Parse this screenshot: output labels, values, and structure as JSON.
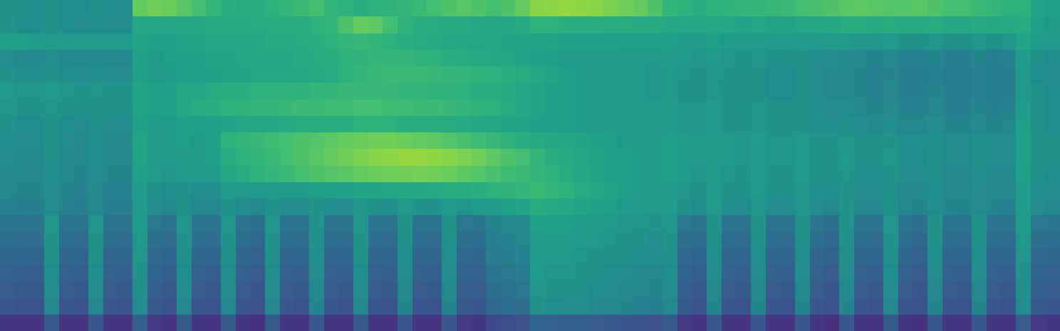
{
  "chart_data": {
    "type": "heatmap",
    "tick_labels": false,
    "grid": false,
    "zlim": [
      0,
      100
    ],
    "z": [
      [
        50,
        50,
        49,
        50,
        49,
        49,
        50,
        49,
        48,
        76,
        78,
        77,
        74,
        70,
        66,
        63,
        62,
        62,
        64,
        66,
        68,
        70,
        66,
        64,
        63,
        64,
        65,
        66,
        68,
        70,
        72,
        74,
        72,
        70,
        72,
        76,
        82,
        83,
        84,
        83,
        82,
        80,
        78,
        76,
        72,
        66,
        64,
        63,
        64,
        65,
        66,
        66,
        67,
        68,
        70,
        71,
        72,
        74,
        75,
        74,
        73,
        73,
        74,
        72,
        70,
        70,
        68,
        66,
        64,
        64,
        58,
        56
      ],
      [
        50,
        49,
        49,
        50,
        49,
        48,
        49,
        48,
        48,
        60,
        59,
        59,
        60,
        60,
        61,
        61,
        61,
        62,
        62,
        63,
        63,
        64,
        66,
        72,
        76,
        75,
        70,
        65,
        63,
        62,
        61,
        61,
        60,
        60,
        60,
        61,
        64,
        64,
        63,
        63,
        63,
        62,
        62,
        61,
        61,
        60,
        59,
        59,
        60,
        59,
        58,
        59,
        58,
        58,
        59,
        59,
        60,
        62,
        62,
        61,
        62,
        61,
        61,
        62,
        60,
        60,
        61,
        60,
        61,
        62,
        56,
        55
      ],
      [
        56,
        56,
        55,
        55,
        55,
        54,
        54,
        55,
        54,
        58,
        57,
        57,
        58,
        58,
        59,
        59,
        60,
        60,
        61,
        61,
        62,
        63,
        64,
        66,
        67,
        66,
        64,
        63,
        62,
        61,
        60,
        60,
        59,
        59,
        58,
        58,
        58,
        58,
        57,
        57,
        57,
        57,
        56,
        56,
        56,
        56,
        55,
        55,
        56,
        55,
        54,
        55,
        54,
        54,
        55,
        54,
        53,
        53,
        52,
        52,
        53,
        51,
        51,
        52,
        50,
        50,
        52,
        51,
        52,
        58,
        54,
        53
      ],
      [
        48,
        47,
        47,
        48,
        47,
        46,
        47,
        46,
        46,
        57,
        55,
        56,
        57,
        57,
        58,
        58,
        59,
        59,
        60,
        60,
        61,
        62,
        63,
        64,
        65,
        66,
        66,
        66,
        65,
        64,
        63,
        62,
        61,
        60,
        59,
        58,
        57,
        56,
        55,
        55,
        54,
        54,
        53,
        53,
        53,
        54,
        53,
        52,
        53,
        52,
        51,
        52,
        50,
        50,
        51,
        49,
        48,
        47,
        46,
        45,
        46,
        44,
        44,
        45,
        43,
        43,
        45,
        43,
        44,
        54,
        50,
        49
      ],
      [
        50,
        49,
        49,
        50,
        49,
        48,
        49,
        48,
        48,
        57,
        55,
        55,
        56,
        57,
        57,
        58,
        58,
        59,
        59,
        60,
        60,
        61,
        62,
        64,
        66,
        67,
        68,
        68,
        68,
        67,
        66,
        66,
        65,
        64,
        63,
        62,
        60,
        58,
        56,
        55,
        54,
        54,
        53,
        53,
        52,
        53,
        52,
        51,
        52,
        51,
        50,
        51,
        49,
        49,
        50,
        48,
        47,
        46,
        45,
        44,
        45,
        43,
        42,
        44,
        42,
        42,
        44,
        42,
        43,
        53,
        49,
        48
      ],
      [
        53,
        52,
        52,
        53,
        52,
        51,
        52,
        51,
        51,
        58,
        56,
        57,
        59,
        60,
        62,
        63,
        63,
        64,
        64,
        65,
        65,
        66,
        66,
        67,
        67,
        67,
        67,
        66,
        66,
        65,
        65,
        64,
        63,
        62,
        61,
        60,
        58,
        57,
        56,
        55,
        54,
        54,
        53,
        53,
        52,
        53,
        51,
        51,
        52,
        50,
        50,
        51,
        49,
        49,
        50,
        48,
        47,
        47,
        45,
        44,
        46,
        43,
        43,
        45,
        42,
        42,
        44,
        42,
        43,
        53,
        50,
        49
      ],
      [
        52,
        51,
        51,
        52,
        51,
        50,
        51,
        50,
        50,
        58,
        56,
        57,
        60,
        62,
        63,
        64,
        65,
        66,
        66,
        67,
        68,
        68,
        69,
        69,
        70,
        70,
        69,
        69,
        68,
        68,
        67,
        66,
        65,
        64,
        62,
        60,
        58,
        57,
        56,
        55,
        55,
        54,
        54,
        53,
        53,
        54,
        52,
        52,
        53,
        51,
        51,
        52,
        50,
        50,
        51,
        49,
        48,
        48,
        46,
        45,
        47,
        44,
        44,
        46,
        43,
        43,
        45,
        43,
        44,
        54,
        50,
        49
      ],
      [
        50,
        49,
        49,
        51,
        49,
        48,
        50,
        48,
        48,
        57,
        55,
        55,
        56,
        56,
        57,
        58,
        59,
        60,
        60,
        61,
        62,
        62,
        63,
        63,
        64,
        64,
        64,
        63,
        63,
        62,
        62,
        61,
        60,
        59,
        58,
        58,
        57,
        56,
        56,
        55,
        55,
        54,
        54,
        53,
        53,
        54,
        52,
        52,
        53,
        51,
        51,
        52,
        50,
        50,
        51,
        49,
        49,
        50,
        48,
        47,
        49,
        46,
        46,
        48,
        45,
        45,
        47,
        45,
        46,
        56,
        50,
        49
      ],
      [
        49,
        48,
        48,
        51,
        48,
        47,
        49,
        47,
        47,
        58,
        55,
        54,
        56,
        55,
        57,
        64,
        66,
        67,
        69,
        70,
        72,
        73,
        75,
        76,
        77,
        78,
        78,
        77,
        76,
        75,
        73,
        71,
        69,
        67,
        65,
        63,
        61,
        60,
        59,
        58,
        57,
        56,
        55,
        55,
        54,
        56,
        54,
        53,
        55,
        53,
        52,
        54,
        52,
        52,
        53,
        51,
        51,
        52,
        50,
        50,
        51,
        49,
        49,
        50,
        48,
        48,
        50,
        48,
        48,
        57,
        51,
        50
      ],
      [
        48,
        47,
        47,
        50,
        47,
        46,
        49,
        46,
        46,
        58,
        54,
        53,
        55,
        54,
        56,
        62,
        64,
        66,
        68,
        70,
        72,
        74,
        76,
        78,
        80,
        82,
        83,
        84,
        84,
        83,
        82,
        80,
        78,
        75,
        72,
        70,
        66,
        63,
        61,
        59,
        58,
        57,
        56,
        55,
        55,
        56,
        54,
        53,
        55,
        53,
        52,
        54,
        52,
        52,
        54,
        51,
        51,
        53,
        50,
        50,
        52,
        49,
        49,
        51,
        48,
        48,
        50,
        48,
        48,
        57,
        51,
        50
      ],
      [
        47,
        46,
        46,
        49,
        46,
        45,
        48,
        45,
        45,
        57,
        53,
        52,
        54,
        53,
        54,
        60,
        62,
        64,
        66,
        68,
        70,
        72,
        73,
        74,
        76,
        77,
        78,
        78,
        79,
        78,
        77,
        75,
        73,
        71,
        69,
        68,
        66,
        64,
        62,
        60,
        58,
        57,
        56,
        55,
        54,
        56,
        53,
        52,
        55,
        52,
        51,
        54,
        51,
        51,
        53,
        50,
        50,
        52,
        49,
        49,
        51,
        48,
        48,
        50,
        47,
        47,
        49,
        47,
        47,
        56,
        50,
        49
      ],
      [
        46,
        45,
        45,
        48,
        45,
        44,
        47,
        44,
        44,
        55,
        50,
        49,
        50,
        49,
        49,
        54,
        53,
        54,
        55,
        54,
        55,
        56,
        56,
        57,
        58,
        58,
        59,
        60,
        60,
        61,
        62,
        62,
        63,
        64,
        65,
        66,
        68,
        66,
        64,
        62,
        60,
        58,
        56,
        55,
        54,
        55,
        52,
        51,
        54,
        51,
        50,
        53,
        50,
        50,
        52,
        49,
        49,
        51,
        48,
        48,
        50,
        47,
        47,
        49,
        46,
        46,
        48,
        46,
        46,
        55,
        49,
        48
      ],
      [
        44,
        43,
        43,
        48,
        44,
        43,
        47,
        43,
        42,
        54,
        48,
        47,
        50,
        47,
        46,
        50,
        48,
        47,
        50,
        48,
        48,
        51,
        49,
        48,
        52,
        50,
        49,
        53,
        51,
        50,
        54,
        52,
        53,
        55,
        56,
        58,
        62,
        61,
        60,
        58,
        57,
        56,
        55,
        54,
        53,
        54,
        50,
        49,
        53,
        49,
        48,
        52,
        48,
        48,
        52,
        48,
        47,
        51,
        47,
        46,
        50,
        46,
        45,
        49,
        45,
        45,
        48,
        45,
        44,
        55,
        48,
        47
      ],
      [
        39,
        38,
        38,
        52,
        39,
        38,
        52,
        39,
        38,
        54,
        40,
        38,
        52,
        39,
        38,
        52,
        39,
        37,
        52,
        39,
        38,
        51,
        39,
        38,
        52,
        39,
        38,
        51,
        39,
        38,
        51,
        40,
        39,
        45,
        46,
        47,
        57,
        56,
        56,
        55,
        54,
        53,
        52,
        52,
        51,
        52,
        40,
        38,
        51,
        39,
        38,
        51,
        39,
        38,
        51,
        39,
        37,
        51,
        39,
        38,
        52,
        39,
        37,
        51,
        39,
        38,
        51,
        39,
        38,
        54,
        40,
        39
      ],
      [
        36,
        35,
        35,
        51,
        36,
        35,
        51,
        36,
        35,
        53,
        37,
        35,
        51,
        36,
        35,
        51,
        36,
        34,
        51,
        36,
        35,
        50,
        36,
        35,
        51,
        36,
        35,
        50,
        36,
        35,
        50,
        37,
        36,
        43,
        44,
        46,
        55,
        55,
        54,
        54,
        53,
        52,
        51,
        50,
        49,
        51,
        37,
        35,
        50,
        36,
        35,
        50,
        36,
        35,
        50,
        36,
        34,
        50,
        36,
        35,
        51,
        36,
        34,
        50,
        36,
        35,
        50,
        36,
        35,
        53,
        37,
        36
      ],
      [
        33,
        32,
        32,
        50,
        33,
        32,
        50,
        33,
        32,
        52,
        34,
        32,
        50,
        33,
        32,
        50,
        33,
        31,
        50,
        33,
        32,
        49,
        33,
        32,
        50,
        33,
        32,
        49,
        33,
        32,
        49,
        34,
        33,
        41,
        42,
        44,
        54,
        53,
        53,
        52,
        51,
        50,
        50,
        49,
        48,
        50,
        34,
        32,
        49,
        33,
        32,
        49,
        33,
        32,
        49,
        33,
        31,
        49,
        33,
        32,
        50,
        33,
        31,
        49,
        33,
        32,
        49,
        33,
        32,
        52,
        34,
        33
      ],
      [
        31,
        30,
        30,
        49,
        31,
        30,
        49,
        31,
        30,
        51,
        32,
        30,
        49,
        31,
        30,
        49,
        31,
        29,
        49,
        31,
        30,
        48,
        31,
        30,
        49,
        31,
        30,
        48,
        31,
        30,
        48,
        32,
        31,
        39,
        40,
        42,
        53,
        52,
        52,
        51,
        50,
        49,
        48,
        47,
        46,
        49,
        32,
        30,
        48,
        31,
        30,
        48,
        31,
        30,
        48,
        31,
        29,
        48,
        31,
        30,
        49,
        31,
        29,
        48,
        31,
        30,
        48,
        31,
        30,
        51,
        32,
        31
      ],
      [
        29,
        28,
        28,
        48,
        29,
        28,
        48,
        29,
        28,
        50,
        30,
        28,
        48,
        29,
        28,
        48,
        29,
        27,
        48,
        29,
        28,
        47,
        29,
        28,
        48,
        29,
        28,
        47,
        29,
        28,
        47,
        30,
        29,
        37,
        38,
        40,
        52,
        51,
        50,
        50,
        49,
        48,
        47,
        46,
        45,
        48,
        30,
        28,
        47,
        29,
        28,
        47,
        29,
        28,
        47,
        29,
        27,
        47,
        29,
        28,
        48,
        29,
        27,
        47,
        29,
        28,
        47,
        29,
        28,
        50,
        30,
        29
      ],
      [
        27,
        26,
        26,
        46,
        27,
        26,
        46,
        27,
        26,
        48,
        28,
        26,
        46,
        27,
        26,
        46,
        27,
        25,
        46,
        27,
        26,
        45,
        27,
        26,
        46,
        27,
        26,
        45,
        27,
        26,
        45,
        28,
        27,
        34,
        36,
        37,
        50,
        49,
        48,
        48,
        47,
        46,
        45,
        44,
        43,
        46,
        28,
        26,
        45,
        27,
        26,
        45,
        27,
        26,
        45,
        27,
        25,
        45,
        27,
        26,
        46,
        27,
        25,
        45,
        27,
        26,
        45,
        27,
        26,
        48,
        28,
        27
      ],
      [
        16,
        15,
        15,
        28,
        16,
        15,
        27,
        16,
        15,
        30,
        17,
        15,
        28,
        16,
        15,
        28,
        16,
        14,
        28,
        16,
        15,
        27,
        16,
        15,
        28,
        16,
        15,
        27,
        16,
        15,
        27,
        17,
        16,
        22,
        24,
        25,
        32,
        31,
        30,
        30,
        29,
        28,
        27,
        26,
        25,
        28,
        17,
        15,
        27,
        16,
        15,
        27,
        16,
        15,
        27,
        16,
        14,
        27,
        16,
        15,
        28,
        16,
        14,
        27,
        16,
        15,
        27,
        16,
        15,
        29,
        17,
        16
      ]
    ]
  }
}
